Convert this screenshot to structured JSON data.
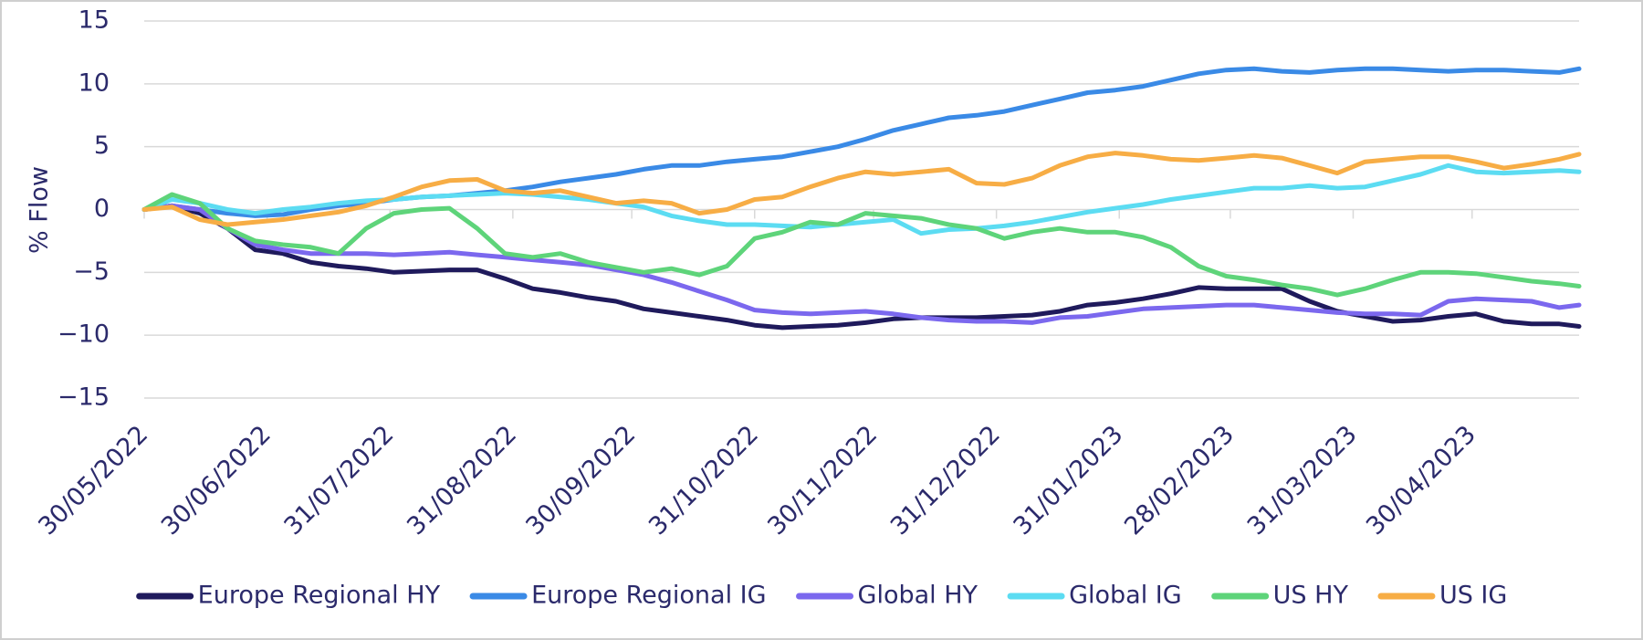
{
  "chart_data": {
    "type": "line",
    "y_label": "% Flow",
    "x": [
      "30/05/2022",
      "06/06/2022",
      "13/06/2022",
      "20/06/2022",
      "27/06/2022",
      "04/07/2022",
      "11/07/2022",
      "18/07/2022",
      "25/07/2022",
      "01/08/2022",
      "08/08/2022",
      "15/08/2022",
      "22/08/2022",
      "29/08/2022",
      "05/09/2022",
      "12/09/2022",
      "19/09/2022",
      "26/09/2022",
      "03/10/2022",
      "10/10/2022",
      "17/10/2022",
      "24/10/2022",
      "31/10/2022",
      "07/11/2022",
      "14/11/2022",
      "21/11/2022",
      "28/11/2022",
      "05/12/2022",
      "12/12/2022",
      "19/12/2022",
      "26/12/2022",
      "02/01/2023",
      "09/01/2023",
      "16/01/2023",
      "23/01/2023",
      "30/01/2023",
      "06/02/2023",
      "13/02/2023",
      "20/02/2023",
      "27/02/2023",
      "06/03/2023",
      "13/03/2023",
      "20/03/2023",
      "27/03/2023",
      "03/04/2023",
      "10/04/2023",
      "17/04/2023",
      "24/04/2023",
      "01/05/2023",
      "08/05/2023",
      "15/05/2023",
      "22/05/2023",
      "27/05/2023"
    ],
    "xlim": [
      "30/05/2022",
      "27/05/2023"
    ],
    "xticks": [
      "30/05/2022",
      "30/06/2022",
      "31/07/2022",
      "31/08/2022",
      "30/09/2022",
      "31/10/2022",
      "30/11/2022",
      "31/12/2022",
      "31/01/2023",
      "28/02/2023",
      "31/03/2023",
      "30/04/2023"
    ],
    "ylim": [
      -15,
      15
    ],
    "yticks": [
      {
        "value": -15,
        "label": "−15"
      },
      {
        "value": -10,
        "label": "−10"
      },
      {
        "value": -5,
        "label": "−5"
      },
      0,
      5,
      10,
      15
    ],
    "grid": true,
    "legend": "bottom",
    "series": [
      {
        "name": "Europe Regional HY",
        "color": "#1f1a5c",
        "values": [
          0,
          0.3,
          -0.3,
          -1.5,
          -3.2,
          -3.5,
          -4.2,
          -4.5,
          -4.7,
          -5,
          -4.9,
          -4.8,
          -4.8,
          -5.5,
          -6.3,
          -6.6,
          -7,
          -7.3,
          -7.9,
          -8.2,
          -8.5,
          -8.8,
          -9.2,
          -9.4,
          -9.3,
          -9.2,
          -9,
          -8.7,
          -8.6,
          -8.6,
          -8.6,
          -8.5,
          -8.4,
          -8.1,
          -7.6,
          -7.4,
          -7.1,
          -6.7,
          -6.2,
          -6.3,
          -6.3,
          -6.3,
          -7.3,
          -8.1,
          -8.5,
          -8.9,
          -8.8,
          -8.5,
          -8.3,
          -8.9,
          -9.1,
          -9.1,
          -9.3
        ]
      },
      {
        "name": "Europe Regional IG",
        "color": "#3a8ae6",
        "values": [
          0,
          0.3,
          0,
          -0.3,
          -0.5,
          -0.4,
          0,
          0.3,
          0.5,
          0.8,
          1,
          1.1,
          1.3,
          1.5,
          1.8,
          2.2,
          2.5,
          2.8,
          3.2,
          3.5,
          3.5,
          3.8,
          4,
          4.2,
          4.6,
          5,
          5.6,
          6.3,
          6.8,
          7.3,
          7.5,
          7.8,
          8.3,
          8.8,
          9.3,
          9.5,
          9.8,
          10.3,
          10.8,
          11.1,
          11.2,
          11,
          10.9,
          11.1,
          11.2,
          11.2,
          11.1,
          11,
          11.1,
          11.1,
          11,
          10.9,
          11.2
        ]
      },
      {
        "name": "Global HY",
        "color": "#7b68ee",
        "values": [
          0,
          0.3,
          0,
          -1.5,
          -2.8,
          -3.2,
          -3.5,
          -3.5,
          -3.5,
          -3.6,
          -3.5,
          -3.4,
          -3.6,
          -3.8,
          -4,
          -4.2,
          -4.4,
          -4.8,
          -5.2,
          -5.8,
          -6.5,
          -7.2,
          -8,
          -8.2,
          -8.3,
          -8.2,
          -8.1,
          -8.3,
          -8.6,
          -8.8,
          -8.9,
          -8.9,
          -9,
          -8.6,
          -8.5,
          -8.2,
          -7.9,
          -7.8,
          -7.7,
          -7.6,
          -7.6,
          -7.8,
          -8,
          -8.2,
          -8.3,
          -8.3,
          -8.4,
          -7.3,
          -7.1,
          -7.2,
          -7.3,
          -7.8,
          -7.6
        ]
      },
      {
        "name": "Global IG",
        "color": "#5cdcf2",
        "values": [
          0,
          0.8,
          0.5,
          0,
          -0.3,
          0,
          0.2,
          0.5,
          0.7,
          0.8,
          1,
          1.1,
          1.2,
          1.3,
          1.2,
          1,
          0.8,
          0.5,
          0.2,
          -0.5,
          -0.9,
          -1.2,
          -1.2,
          -1.3,
          -1.4,
          -1.2,
          -1,
          -0.8,
          -1.9,
          -1.6,
          -1.5,
          -1.3,
          -1,
          -0.6,
          -0.2,
          0.1,
          0.4,
          0.8,
          1.1,
          1.4,
          1.7,
          1.7,
          1.9,
          1.7,
          1.8,
          2.3,
          2.8,
          3.5,
          3,
          2.9,
          3,
          3.1,
          3
        ]
      },
      {
        "name": "US HY",
        "color": "#5ed47a",
        "values": [
          0,
          1.2,
          0.5,
          -1.5,
          -2.5,
          -2.8,
          -3,
          -3.5,
          -1.5,
          -0.3,
          0,
          0.1,
          -1.5,
          -3.5,
          -3.8,
          -3.5,
          -4.2,
          -4.6,
          -5,
          -4.7,
          -5.2,
          -4.5,
          -2.3,
          -1.8,
          -1,
          -1.2,
          -0.3,
          -0.5,
          -0.7,
          -1.2,
          -1.5,
          -2.3,
          -1.8,
          -1.5,
          -1.8,
          -1.8,
          -2.2,
          -3,
          -4.5,
          -5.3,
          -5.6,
          -6,
          -6.3,
          -6.8,
          -6.3,
          -5.6,
          -5,
          -5,
          -5.1,
          -5.4,
          -5.7,
          -5.9,
          -6.1
        ]
      },
      {
        "name": "US IG",
        "color": "#f7ad45",
        "values": [
          0,
          0.2,
          -0.8,
          -1.2,
          -1,
          -0.8,
          -0.5,
          -0.2,
          0.3,
          1,
          1.8,
          2.3,
          2.4,
          1.5,
          1.3,
          1.5,
          1,
          0.5,
          0.7,
          0.5,
          -0.3,
          0,
          0.8,
          1,
          1.8,
          2.5,
          3,
          2.8,
          3,
          3.2,
          2.1,
          2,
          2.5,
          3.5,
          4.2,
          4.5,
          4.3,
          4,
          3.9,
          4.1,
          4.3,
          4.1,
          3.5,
          2.9,
          3.8,
          4,
          4.2,
          4.2,
          3.8,
          3.3,
          3.6,
          4,
          4.4
        ]
      }
    ]
  }
}
